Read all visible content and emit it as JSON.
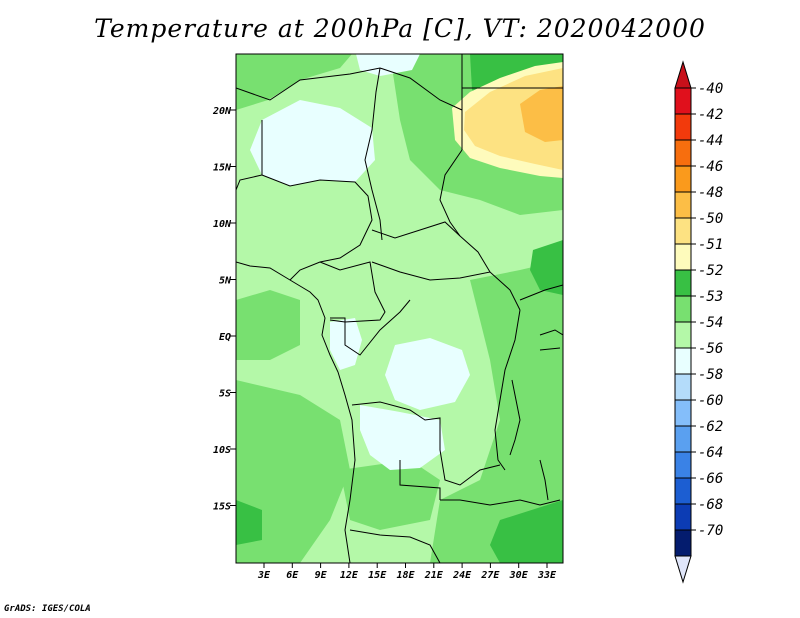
{
  "title": "Temperature at 200hPa [C], VT: 2020042000",
  "credit": "GrADS: IGES/COLA",
  "map": {
    "lat_ticks": [
      "20N",
      "15N",
      "10N",
      "5N",
      "EQ",
      "5S",
      "10S",
      "15S"
    ],
    "lon_ticks": [
      "3E",
      "6E",
      "9E",
      "12E",
      "15E",
      "18E",
      "21E",
      "24E",
      "27E",
      "30E",
      "33E"
    ]
  },
  "colorbar": {
    "labels": [
      "-40",
      "-42",
      "-44",
      "-46",
      "-48",
      "-50",
      "-51",
      "-52",
      "-53",
      "-54",
      "-56",
      "-58",
      "-60",
      "-62",
      "-64",
      "-66",
      "-68",
      "-70"
    ],
    "colors": [
      "#e0101c",
      "#f23a0c",
      "#f76e0e",
      "#fa9a1c",
      "#fcbe46",
      "#fde282",
      "#fefbbc",
      "#38c044",
      "#78e070",
      "#b4f8a8",
      "#e8ffff",
      "#b4dcfa",
      "#84befa",
      "#5aa0f0",
      "#3a82e6",
      "#1c5ed2",
      "#0c3cb4",
      "#041c6e"
    ],
    "top_color": "#c8101a",
    "bottom_color": "#e0e6fa"
  },
  "palette": {
    "lightest": "#e8ffff",
    "light_green": "#b4f8a8",
    "mid_green": "#78e070",
    "dark_green": "#38c044",
    "pale_yellow": "#fefbbc",
    "yellow": "#fde282",
    "orange_yellow": "#fcbe46"
  }
}
